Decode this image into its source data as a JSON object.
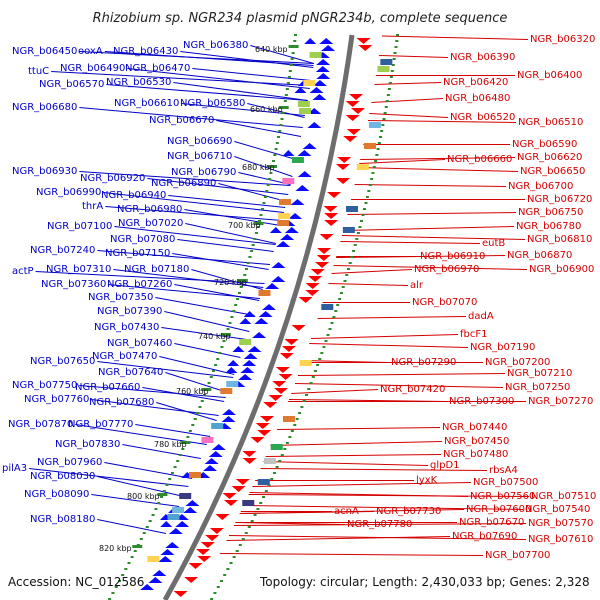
{
  "title": "Rhizobium sp. NGR234 plasmid pNGR234b, complete sequence",
  "footer": {
    "accession": "Accession: NC_012586",
    "summary": "Topology: circular; Length: 2,430,033 bp; Genes: 2,328"
  },
  "kbp_labels": [
    "640 kbp",
    "660 kbp",
    "680 kbp",
    "700 kbp",
    "720 kbp",
    "740 kbp",
    "760 kbp",
    "780 kbp",
    "800 kbp",
    "820 kbp"
  ],
  "left_labels": [
    "NGR_b06450",
    "ooxA",
    "NGR_b06430",
    "NGR_b06380",
    "NGR_b06490",
    "NGR_b06470",
    "ttuC",
    "NGR_b06570",
    "NGR_b06530",
    "NGR_b06680",
    "NGR_b06610",
    "NGR_b06580",
    "NGR_b06670",
    "NGR_b06690",
    "NGR_b06710",
    "NGR_b06790",
    "NGR_b06930",
    "NGR_b06920",
    "NGR_b06890",
    "NGR_b06990",
    "NGR_b06940",
    "thrA",
    "NGR_b06980",
    "NGR_b07100",
    "NGR_b07020",
    "NGR_b07080",
    "NGR_b07240",
    "NGR_b07150",
    "NGR_b07310",
    "NGR_b07180",
    "actP",
    "NGR_b07360",
    "NGR_b07260",
    "NGR_b07350",
    "NGR_b07390",
    "NGR_b07430",
    "NGR_b07460",
    "NGR_b07650",
    "NGR_b07470",
    "NGR_b07640",
    "NGR_b07750",
    "NGR_b07660",
    "NGR_b07760",
    "NGR_b07680",
    "NGR_b07870",
    "NGR_b07770",
    "NGR_b07830",
    "NGR_b07960",
    "pilA3",
    "NGR_b08030",
    "NGR_b08090",
    "NGR_b08180"
  ],
  "right_labels": [
    "NGR_b06320",
    "NGR_b06390",
    "NGR_b06400",
    "NGR_b06420",
    "NGR_b06480",
    "NGR_b06520",
    "NGR_b06510",
    "NGR_b06590",
    "NGR_b06620",
    "NGR_b06660",
    "NGR_b06650",
    "NGR_b06700",
    "NGR_b06720",
    "NGR_b06750",
    "NGR_b06780",
    "NGR_b06810",
    "eutB",
    "NGR_b06910",
    "NGR_b06870",
    "NGR_b06970",
    "NGR_b06900",
    "alr",
    "NGR_b07070",
    "dadA",
    "fbcF1",
    "NGR_b07190",
    "NGR_b07290",
    "NGR_b07200",
    "NGR_b07210",
    "NGR_b07420",
    "NGR_b07250",
    "NGR_b07300",
    "NGR_b07270",
    "NGR_b07440",
    "NGR_b07450",
    "glpD1",
    "rbsA4",
    "lyxK",
    "NGR_b07480",
    "NGR_b07500",
    "NGR_b07560",
    "NGR_b07510",
    "acnA",
    "NGR_b07730",
    "NGR_b07600",
    "NGR_b07540",
    "NGR_b07780",
    "NGR_b07670",
    "NGR_b07570",
    "NGR_b07690",
    "NGR_b07610",
    "NGR_b07700"
  ],
  "colors": {
    "forward": "#0a0aff",
    "reverse": "#ff0000",
    "label_blue": "#0000c8",
    "label_red": "#d40000",
    "backbone": "#8a8a8a",
    "tick": "#2e8b2e"
  }
}
